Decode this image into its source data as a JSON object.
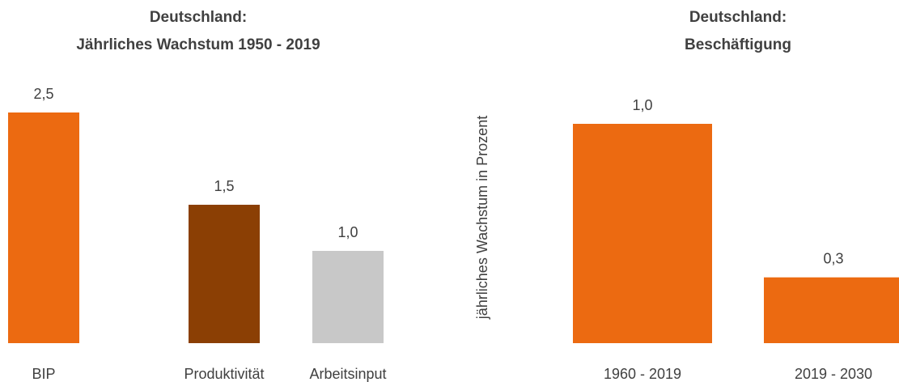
{
  "chart_data": [
    {
      "type": "bar",
      "title": "Deutschland:\nJährliches Wachstum 1950 - 2019",
      "categories": [
        "BIP",
        "Produktivität",
        "Arbeitsinput"
      ],
      "values": [
        2.5,
        1.5,
        1.0
      ],
      "value_labels": [
        "2,5",
        "1,5",
        "1,0"
      ],
      "colors": [
        "#ec6a11",
        "#8b3f04",
        "#c8c8c8"
      ],
      "ylim": [
        0,
        2.5
      ]
    },
    {
      "type": "bar",
      "title": "Deutschland:\nBeschäftigung",
      "y_label": "jährliches Wachstum in Prozent",
      "categories": [
        "1960 - 2019",
        "2019 - 2030"
      ],
      "values": [
        1.0,
        0.3
      ],
      "value_labels": [
        "1,0",
        "0,3"
      ],
      "color": "#ec6a11",
      "ylim": [
        0,
        1.0
      ]
    }
  ]
}
